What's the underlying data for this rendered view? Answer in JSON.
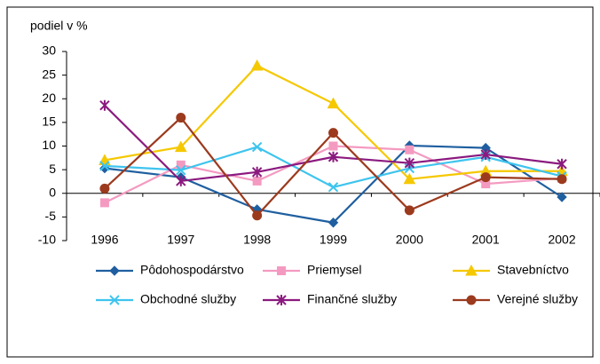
{
  "chart_data": {
    "type": "line",
    "ylabel": "podiel v %",
    "categories": [
      "1996",
      "1997",
      "1998",
      "1999",
      "2000",
      "2001",
      "2002"
    ],
    "ylim": [
      -10,
      30
    ],
    "yticks": [
      -10,
      -5,
      0,
      5,
      10,
      15,
      20,
      25,
      30
    ],
    "grid": false,
    "series": [
      {
        "name": "Pôdohospodárstvo",
        "color": "#1f5fa0",
        "marker": "diamond",
        "values": [
          5.3,
          3.4,
          -3.4,
          -6.2,
          10.1,
          9.6,
          -0.8
        ]
      },
      {
        "name": "Priemysel",
        "color": "#f49ac1",
        "marker": "square",
        "values": [
          -2,
          6,
          2.6,
          10,
          9.2,
          2,
          3.2
        ]
      },
      {
        "name": "Stavebníctvo",
        "color": "#f5c800",
        "marker": "triangle",
        "values": [
          7,
          9.8,
          27,
          19,
          3,
          4.7,
          4.7
        ]
      },
      {
        "name": "Obchodné služby",
        "color": "#3ec4ee",
        "marker": "x",
        "values": [
          5.8,
          4.9,
          9.8,
          1.3,
          5.3,
          7.7,
          3.6
        ]
      },
      {
        "name": "Finančné služby",
        "color": "#8b1a7f",
        "marker": "star",
        "values": [
          18.6,
          2.6,
          4.5,
          7.7,
          6.4,
          8.2,
          6.2
        ]
      },
      {
        "name": "Verejné služby",
        "color": "#9c3a1e",
        "marker": "circle",
        "values": [
          1,
          16,
          -4.7,
          12.8,
          -3.6,
          3.4,
          3
        ]
      }
    ]
  }
}
